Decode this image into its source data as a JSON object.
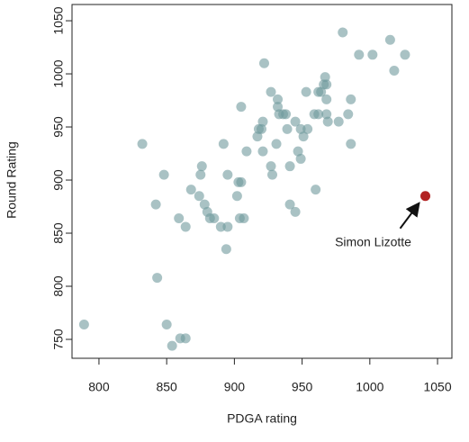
{
  "chart_data": {
    "type": "scatter",
    "xlabel": "PDGA rating",
    "ylabel": "Round Rating",
    "x": [
      789,
      832,
      842,
      843,
      848,
      850,
      854,
      859,
      860,
      864,
      864,
      868,
      874,
      876,
      875,
      878,
      880,
      882,
      885,
      890,
      892,
      895,
      894,
      895,
      902,
      903,
      905,
      904,
      907,
      905,
      909,
      917,
      918,
      920,
      921,
      921,
      922,
      927,
      927,
      928,
      931,
      932,
      932,
      933,
      936,
      938,
      939,
      941,
      941,
      945,
      945,
      947,
      949,
      949,
      951,
      953,
      954,
      959,
      960,
      962,
      962,
      964,
      966,
      967,
      968,
      968,
      968,
      969,
      977,
      980,
      984,
      986,
      986,
      992,
      1002,
      1015,
      1018,
      1026
    ],
    "y": [
      764,
      934,
      877,
      808,
      905,
      764,
      744,
      864,
      751,
      751,
      856,
      891,
      885,
      913,
      905,
      877,
      870,
      864,
      864,
      856,
      934,
      856,
      835,
      905,
      885,
      898,
      898,
      864,
      864,
      969,
      927,
      941,
      948,
      948,
      927,
      955,
      1010,
      983,
      913,
      905,
      934,
      976,
      969,
      962,
      962,
      962,
      948,
      913,
      877,
      870,
      955,
      927,
      948,
      920,
      941,
      983,
      948,
      962,
      891,
      983,
      962,
      983,
      990,
      997,
      990,
      976,
      962,
      955,
      955,
      1039,
      962,
      976,
      934,
      1018,
      1018,
      1032,
      1003,
      1018
    ],
    "color": "#6f9a9c",
    "highlight": {
      "label": "Simon Lizotte",
      "x": 1041,
      "y": 885,
      "color": "#b22222"
    },
    "xlim": [
      780.1,
      1060.6
    ],
    "ylim": [
      732.2,
      1065.3
    ],
    "xticks": [
      800,
      850,
      900,
      950,
      1000,
      1050
    ],
    "yticks": [
      750,
      800,
      850,
      900,
      950,
      1000,
      1050
    ],
    "grid": false
  }
}
